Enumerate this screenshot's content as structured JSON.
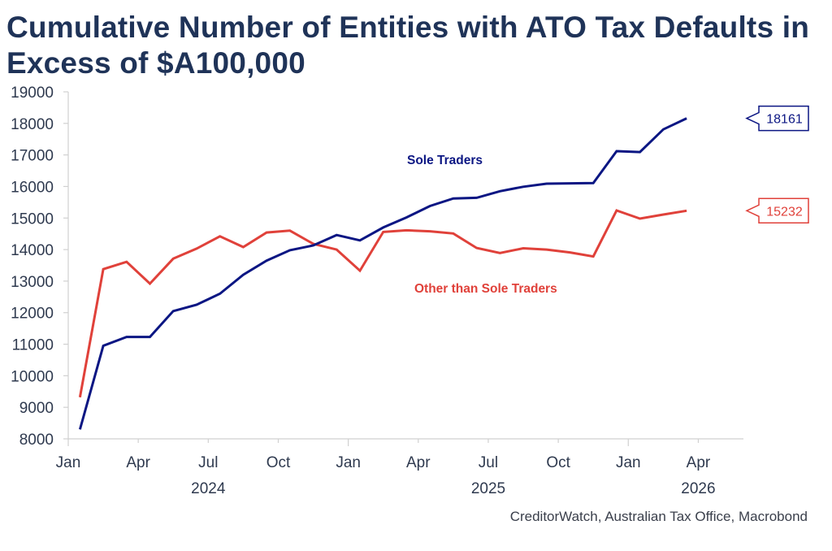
{
  "title": "Cumulative Number of Entities with ATO Tax Defaults in Excess of $A100,000",
  "source": "CreditorWatch, Australian Tax Office, Macrobond",
  "colors": {
    "title": "#1f3358",
    "sole_traders": "#0b1683",
    "other": "#e0413a",
    "axis": "#d0d0d0",
    "tick_text": "#2f3a4f"
  },
  "chart_data": {
    "type": "line",
    "title": "Cumulative Number of Entities with ATO Tax Defaults in Excess of $A100,000",
    "xlabel": "",
    "ylabel": "",
    "ylim": [
      8000,
      19000
    ],
    "yticks": [
      8000,
      9000,
      10000,
      11000,
      12000,
      13000,
      14000,
      15000,
      16000,
      17000,
      18000,
      19000
    ],
    "x_start": "2024-01",
    "x_range_months": [
      0,
      28
    ],
    "x": [
      "2024-01",
      "2024-02",
      "2024-03",
      "2024-04",
      "2024-05",
      "2024-06",
      "2024-07",
      "2024-08",
      "2024-09",
      "2024-10",
      "2024-11",
      "2024-12",
      "2025-01",
      "2025-02",
      "2025-03",
      "2025-04",
      "2025-05",
      "2025-06",
      "2025-07",
      "2025-08",
      "2025-09",
      "2025-10",
      "2025-11",
      "2025-12",
      "2026-01",
      "2026-02",
      "2026-03"
    ],
    "xticks": [
      {
        "label": "Jan",
        "month": 0,
        "year_boundary": true
      },
      {
        "label": "Apr",
        "month": 3,
        "year_boundary": false
      },
      {
        "label": "Jul",
        "month": 6,
        "year_boundary": false
      },
      {
        "label": "Oct",
        "month": 9,
        "year_boundary": false
      },
      {
        "label": "Jan",
        "month": 12,
        "year_boundary": true
      },
      {
        "label": "Apr",
        "month": 15,
        "year_boundary": false
      },
      {
        "label": "Jul",
        "month": 18,
        "year_boundary": false
      },
      {
        "label": "Oct",
        "month": 21,
        "year_boundary": false
      },
      {
        "label": "Jan",
        "month": 24,
        "year_boundary": true
      },
      {
        "label": "Apr",
        "month": 27,
        "year_boundary": false
      }
    ],
    "year_labels": [
      {
        "label": "2024",
        "month": 6
      },
      {
        "label": "2025",
        "month": 18
      },
      {
        "label": "2026",
        "month": 27
      }
    ],
    "grid": false,
    "series": [
      {
        "name": "Sole Traders",
        "color": "#0b1683",
        "values": [
          8300,
          10950,
          11230,
          11230,
          12050,
          12250,
          12600,
          13200,
          13650,
          13980,
          14130,
          14460,
          14290,
          14700,
          15020,
          15380,
          15620,
          15640,
          15850,
          15990,
          16090,
          16100,
          16110,
          17120,
          17090,
          17810,
          18161
        ],
        "end_label": "18161"
      },
      {
        "name": "Other than Sole Traders",
        "color": "#e0413a",
        "values": [
          9320,
          13380,
          13610,
          12920,
          13710,
          14030,
          14420,
          14080,
          14540,
          14600,
          14180,
          14000,
          13330,
          14560,
          14610,
          14580,
          14510,
          14050,
          13890,
          14040,
          14000,
          13910,
          13780,
          15240,
          14980,
          15110,
          15232
        ],
        "end_label": "15232"
      }
    ],
    "annotations": [
      {
        "text": "Sole Traders",
        "series": 0
      },
      {
        "text": "Other than Sole Traders",
        "series": 1
      }
    ]
  }
}
